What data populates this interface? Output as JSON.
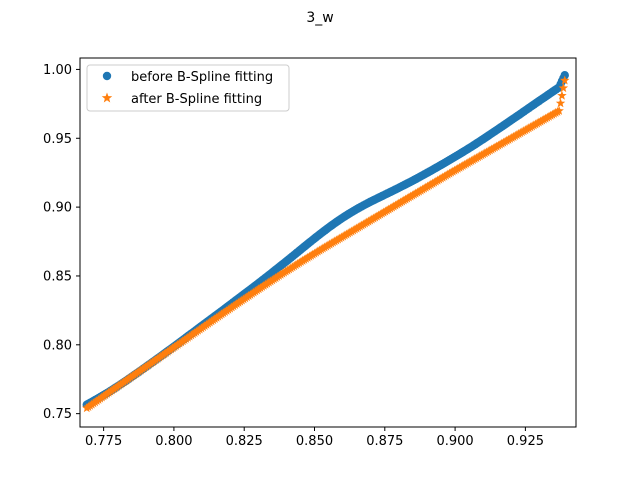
{
  "chart_data": {
    "type": "scatter",
    "title": "3_w",
    "xlabel": "",
    "ylabel": "",
    "xlim": [
      0.7666,
      0.943
    ],
    "ylim": [
      0.7403,
      1.0083
    ],
    "xticks": [
      0.775,
      0.8,
      0.825,
      0.85,
      0.875,
      0.9,
      0.925
    ],
    "xtick_labels": [
      "0.775",
      "0.800",
      "0.825",
      "0.850",
      "0.875",
      "0.900",
      "0.925"
    ],
    "yticks": [
      0.75,
      0.8,
      0.85,
      0.9,
      0.95,
      1.0
    ],
    "ytick_labels": [
      "0.75",
      "0.80",
      "0.85",
      "0.90",
      "0.95",
      "1.00"
    ],
    "grid": false,
    "legend_position": "upper-left",
    "series": [
      {
        "name": "before B-Spline fitting",
        "marker": "circle",
        "color": "#1f77b4",
        "x": [
          0.769,
          0.7714,
          0.7738,
          0.7762,
          0.7786,
          0.781,
          0.7834,
          0.7858,
          0.7882,
          0.7906,
          0.793,
          0.7954,
          0.7978,
          0.8002,
          0.8026,
          0.805,
          0.8074,
          0.8098,
          0.8122,
          0.8146,
          0.817,
          0.8194,
          0.8218,
          0.8242,
          0.8266,
          0.829,
          0.8314,
          0.8338,
          0.8362,
          0.8386,
          0.841,
          0.8434,
          0.8458,
          0.8482,
          0.8506,
          0.853,
          0.8554,
          0.8578,
          0.8602,
          0.8626,
          0.865,
          0.8674,
          0.8698,
          0.8722,
          0.8746,
          0.877,
          0.8794,
          0.8818,
          0.8842,
          0.8866,
          0.889,
          0.8914,
          0.8938,
          0.8962,
          0.8986,
          0.901,
          0.9034,
          0.9058,
          0.9082,
          0.9106,
          0.913,
          0.9154,
          0.9178,
          0.9202,
          0.9226,
          0.925,
          0.9274,
          0.9298,
          0.9322,
          0.9346,
          0.937,
          0.939
        ],
        "y": [
          0.7565,
          0.7592,
          0.762,
          0.7649,
          0.768,
          0.7712,
          0.7745,
          0.7779,
          0.7813,
          0.7848,
          0.7883,
          0.7918,
          0.7954,
          0.799,
          0.8026,
          0.8063,
          0.8099,
          0.8136,
          0.8172,
          0.8209,
          0.8245,
          0.8282,
          0.8319,
          0.8356,
          0.8393,
          0.843,
          0.8468,
          0.8506,
          0.8545,
          0.8584,
          0.8623,
          0.8663,
          0.8703,
          0.8743,
          0.8782,
          0.882,
          0.8857,
          0.8892,
          0.8925,
          0.8956,
          0.8985,
          0.9012,
          0.9038,
          0.9062,
          0.9086,
          0.911,
          0.9134,
          0.9159,
          0.9184,
          0.921,
          0.9237,
          0.9264,
          0.9292,
          0.932,
          0.9349,
          0.9378,
          0.9408,
          0.9438,
          0.947,
          0.9502,
          0.9535,
          0.9568,
          0.9601,
          0.9635,
          0.9668,
          0.9702,
          0.9736,
          0.977,
          0.9803,
          0.9837,
          0.987,
          0.9958
        ]
      },
      {
        "name": "after B-Spline fitting",
        "marker": "star",
        "color": "#ff7f0e",
        "x": [
          0.769,
          0.7714,
          0.7738,
          0.7762,
          0.7786,
          0.781,
          0.7834,
          0.7858,
          0.7882,
          0.7906,
          0.793,
          0.7954,
          0.7978,
          0.8002,
          0.8026,
          0.805,
          0.8074,
          0.8098,
          0.8122,
          0.8146,
          0.817,
          0.8194,
          0.8218,
          0.8242,
          0.8266,
          0.829,
          0.8314,
          0.8338,
          0.8362,
          0.8386,
          0.841,
          0.8434,
          0.8458,
          0.8482,
          0.8506,
          0.853,
          0.8554,
          0.8578,
          0.8602,
          0.8626,
          0.865,
          0.8674,
          0.8698,
          0.8722,
          0.8746,
          0.877,
          0.8794,
          0.8818,
          0.8842,
          0.8866,
          0.889,
          0.8914,
          0.8938,
          0.8962,
          0.8986,
          0.901,
          0.9034,
          0.9058,
          0.9082,
          0.9106,
          0.913,
          0.9154,
          0.9178,
          0.9202,
          0.9226,
          0.925,
          0.9274,
          0.9298,
          0.9322,
          0.9346,
          0.937,
          0.939
        ],
        "y": [
          0.754,
          0.7575,
          0.7609,
          0.7644,
          0.7678,
          0.7712,
          0.7746,
          0.778,
          0.7814,
          0.7848,
          0.7882,
          0.7916,
          0.795,
          0.7984,
          0.8018,
          0.8052,
          0.8086,
          0.812,
          0.8154,
          0.8188,
          0.8222,
          0.8255,
          0.8289,
          0.8322,
          0.8355,
          0.8388,
          0.8421,
          0.8453,
          0.8485,
          0.8517,
          0.8548,
          0.8579,
          0.861,
          0.864,
          0.867,
          0.87,
          0.8729,
          0.8758,
          0.8787,
          0.8816,
          0.8845,
          0.8874,
          0.8903,
          0.8932,
          0.8961,
          0.899,
          0.9019,
          0.9048,
          0.9077,
          0.9106,
          0.9135,
          0.9164,
          0.9193,
          0.9222,
          0.9251,
          0.9279,
          0.9307,
          0.9335,
          0.9363,
          0.9391,
          0.9419,
          0.9447,
          0.9475,
          0.9503,
          0.9531,
          0.9559,
          0.9587,
          0.9615,
          0.9643,
          0.9671,
          0.9699,
          0.992
        ]
      }
    ]
  }
}
